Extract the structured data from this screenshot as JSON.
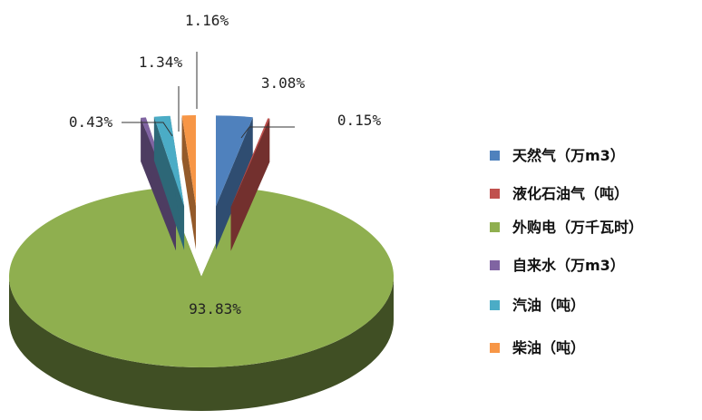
{
  "chart_data": {
    "type": "pie",
    "categories": [
      "天然气（万m3）",
      "液化石油气（吨）",
      "外购电（万千瓦时）",
      "自来水（万m3）",
      "汽油（吨）",
      "柴油（吨）"
    ],
    "values": [
      3.08,
      0.15,
      93.83,
      0.43,
      1.34,
      1.16
    ],
    "value_labels": [
      "3.08%",
      "0.15%",
      "93.83%",
      "0.43%",
      "1.34%",
      "1.16%"
    ],
    "colors": [
      "#4f81bd",
      "#c0504d",
      "#8faf4f",
      "#8064a2",
      "#4bacc6",
      "#f79646"
    ],
    "legend": "right"
  }
}
